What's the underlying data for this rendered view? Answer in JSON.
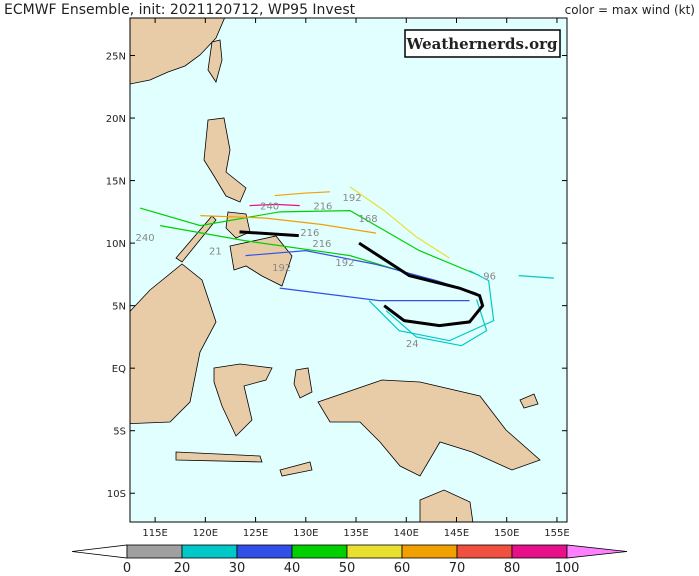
{
  "title": "ECMWF Ensemble, init: 2021120712, WP95 Invest",
  "color_note": "color = max wind (kt)",
  "watermark": "Weathernerds.org",
  "map": {
    "xlim": [
      112.5,
      156
    ],
    "ylim": [
      -12.3,
      28
    ],
    "xticks": [
      {
        "value": 115,
        "label": "115E"
      },
      {
        "value": 120,
        "label": "120E"
      },
      {
        "value": 125,
        "label": "125E"
      },
      {
        "value": 130,
        "label": "130E"
      },
      {
        "value": 135,
        "label": "135E"
      },
      {
        "value": 140,
        "label": "140E"
      },
      {
        "value": 145,
        "label": "145E"
      },
      {
        "value": 150,
        "label": "150E"
      },
      {
        "value": 155,
        "label": "155E"
      }
    ],
    "yticks": [
      {
        "value": 25,
        "label": "25N"
      },
      {
        "value": 20,
        "label": "20N"
      },
      {
        "value": 15,
        "label": "15N"
      },
      {
        "value": 10,
        "label": "10N"
      },
      {
        "value": 5,
        "label": "5N"
      },
      {
        "value": 0,
        "label": "EQ"
      },
      {
        "value": -5,
        "label": "5S"
      },
      {
        "value": -10,
        "label": "10S"
      }
    ]
  },
  "tracks": [
    {
      "color": "#e8e030",
      "lon": [
        134.4,
        137.8,
        141.0,
        144.3
      ],
      "lat": [
        14.5,
        12.6,
        10.5,
        8.8
      ]
    },
    {
      "color": "#e8108a",
      "lon": [
        124.4,
        127.0,
        129.4
      ],
      "lat": [
        13.0,
        13.1,
        13.0
      ]
    },
    {
      "color": "#f0a000",
      "lon": [
        126.9,
        130.0,
        132.4
      ],
      "lat": [
        13.8,
        14.0,
        14.1
      ]
    },
    {
      "color": "#00d000",
      "lon": [
        113.5,
        119.5,
        127.4,
        134.4,
        141.3,
        147.3
      ],
      "lat": [
        12.8,
        11.4,
        12.5,
        12.6,
        9.4,
        7.4
      ]
    },
    {
      "color": "#00d000",
      "lon": [
        115.5,
        123.9,
        134.4,
        144.3
      ],
      "lat": [
        11.4,
        10.2,
        9.0,
        6.6
      ]
    },
    {
      "color": "#f0a000",
      "lon": [
        119.5,
        126.0,
        131.5,
        137.0
      ],
      "lat": [
        12.2,
        12.0,
        11.5,
        10.8
      ]
    },
    {
      "color": "#3050e8",
      "lon": [
        127.4,
        137.3,
        146.3
      ],
      "lat": [
        6.4,
        5.4,
        5.4
      ]
    },
    {
      "color": "#3050e8",
      "lon": [
        124.0,
        130.0,
        137.0,
        143.0,
        147.0
      ],
      "lat": [
        9.0,
        9.4,
        8.3,
        7.0,
        6.0
      ]
    },
    {
      "color": "#00c8c8",
      "lon": [
        136.3,
        139.3,
        144.3,
        148.7,
        148.2,
        146.3
      ],
      "lat": [
        5.4,
        3.0,
        2.2,
        3.8,
        7.0,
        7.8
      ]
    },
    {
      "color": "#00c8c8",
      "lon": [
        138.0,
        141.0,
        145.5,
        148.0,
        147.0
      ],
      "lat": [
        4.6,
        2.5,
        1.8,
        3.0,
        5.5
      ]
    },
    {
      "color": "#00c8c8",
      "lon": [
        151.2,
        154.7
      ],
      "lat": [
        7.4,
        7.2
      ]
    }
  ],
  "mean_tracks": [
    {
      "lon": [
        123.4,
        129.3
      ],
      "lat": [
        10.9,
        10.6
      ]
    },
    {
      "lon": [
        135.3,
        140.3,
        145.3,
        147.3,
        147.6,
        146.3,
        143.3,
        139.8,
        137.8
      ],
      "lat": [
        10.0,
        7.4,
        6.4,
        5.8,
        5.0,
        3.7,
        3.4,
        3.8,
        5.0
      ]
    }
  ],
  "track_labels": [
    {
      "text": "240",
      "lon": 114.0,
      "lat": 10.5
    },
    {
      "text": "240",
      "lon": 126.4,
      "lat": 13.0
    },
    {
      "text": "216",
      "lon": 131.7,
      "lat": 13.0
    },
    {
      "text": "192",
      "lon": 134.6,
      "lat": 13.7
    },
    {
      "text": "168",
      "lon": 136.2,
      "lat": 12.0
    },
    {
      "text": "216",
      "lon": 130.4,
      "lat": 10.9
    },
    {
      "text": "216",
      "lon": 131.6,
      "lat": 10.0
    },
    {
      "text": "192",
      "lon": 127.6,
      "lat": 8.1
    },
    {
      "text": "192",
      "lon": 133.9,
      "lat": 8.5
    },
    {
      "text": "96",
      "lon": 148.3,
      "lat": 7.4
    },
    {
      "text": "24",
      "lon": 140.6,
      "lat": 2.0
    },
    {
      "text": "21",
      "lon": 121.0,
      "lat": 9.4
    }
  ],
  "colorbar": {
    "ticks": [
      0,
      20,
      30,
      40,
      50,
      60,
      70,
      80,
      100
    ],
    "colors": [
      "#a0a0a0",
      "#00c8c8",
      "#3050e8",
      "#00d000",
      "#e8e030",
      "#f0a000",
      "#f05040",
      "#e8108a"
    ],
    "under": "#ffffff",
    "over": "#ff80ff"
  }
}
